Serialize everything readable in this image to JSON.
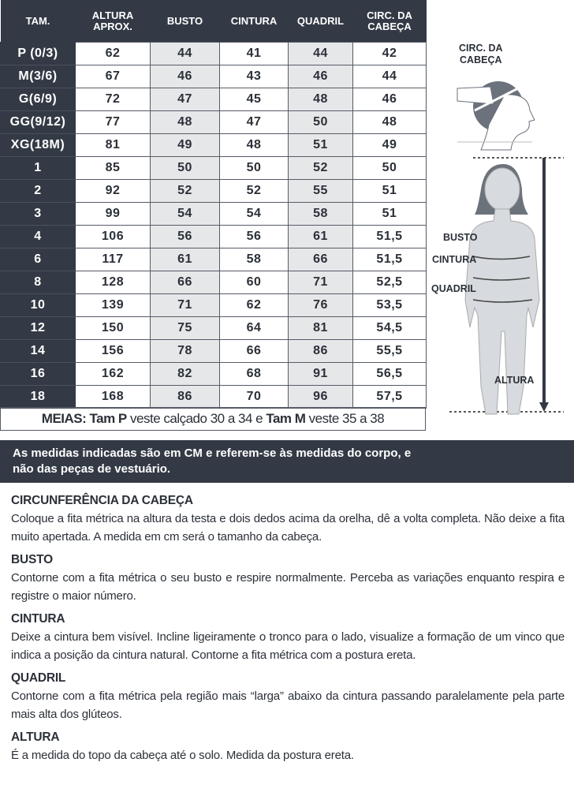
{
  "table": {
    "headers": [
      "TAM.",
      "ALTURA APROX.",
      "BUSTO",
      "CINTURA",
      "QUADRIL",
      "CIRC. DA CABEÇA"
    ],
    "rows": [
      [
        "P (0/3)",
        "62",
        "44",
        "41",
        "44",
        "42"
      ],
      [
        "M(3/6)",
        "67",
        "46",
        "43",
        "46",
        "44"
      ],
      [
        "G(6/9)",
        "72",
        "47",
        "45",
        "48",
        "46"
      ],
      [
        "GG(9/12)",
        "77",
        "48",
        "47",
        "50",
        "48"
      ],
      [
        "XG(18M)",
        "81",
        "49",
        "48",
        "51",
        "49"
      ],
      [
        "1",
        "85",
        "50",
        "50",
        "52",
        "50"
      ],
      [
        "2",
        "92",
        "52",
        "52",
        "55",
        "51"
      ],
      [
        "3",
        "99",
        "54",
        "54",
        "58",
        "51"
      ],
      [
        "4",
        "106",
        "56",
        "56",
        "61",
        "51,5"
      ],
      [
        "6",
        "117",
        "61",
        "58",
        "66",
        "51,5"
      ],
      [
        "8",
        "128",
        "66",
        "60",
        "71",
        "52,5"
      ],
      [
        "10",
        "139",
        "71",
        "62",
        "76",
        "53,5"
      ],
      [
        "12",
        "150",
        "75",
        "64",
        "81",
        "54,5"
      ],
      [
        "14",
        "156",
        "78",
        "66",
        "86",
        "55,5"
      ],
      [
        "16",
        "162",
        "82",
        "68",
        "91",
        "56,5"
      ],
      [
        "18",
        "168",
        "86",
        "70",
        "96",
        "57,5"
      ]
    ]
  },
  "meias": {
    "label": "MEIAS:",
    "p": "Tam P",
    "p_text": "veste calçado 30 a 34  e",
    "m": "Tam M",
    "m_text": "veste 35 a 38"
  },
  "figure": {
    "head_label_1": "CIRC. DA",
    "head_label_2": "CABEÇA",
    "busto": "BUSTO",
    "cintura": "CINTURA",
    "quadril": "QUADRIL",
    "altura": "ALTURA"
  },
  "band": {
    "line1": "As medidas indicadas são em CM e referem-se às medidas do corpo, e",
    "line2": "não das peças de vestuário."
  },
  "notes": [
    {
      "title": "CIRCUNFERÊNCIA DA CABEÇA",
      "text": "Coloque a fita métrica na altura da testa e dois dedos acima da orelha, dê a volta completa. Não deixe a fita muito apertada. A medida em cm será o tamanho da cabeça."
    },
    {
      "title": "BUSTO",
      "text": "Contorne com a fita métrica o seu busto e respire normalmente. Perceba as variações enquanto respira e registre o maior número."
    },
    {
      "title": "CINTURA",
      "text": "Deixe a cintura bem visível. Incline ligeiramente o tronco para o lado, visualize a formação de um vinco que indica a posição da cintura natural. Contorne a fita métrica com a postura ereta."
    },
    {
      "title": "QUADRIL",
      "text": "Contorne com a fita métrica pela região mais “larga” abaixo da cintura passando paralelamente pela parte mais alta dos glúteos."
    },
    {
      "title": "ALTURA",
      "text": "É a medida do topo da cabeça até o solo. Medida da postura ereta."
    }
  ],
  "colors": {
    "dark": "#333a45",
    "gray_column": "#e6e7e9",
    "figure": "#d7dade",
    "hair": "#6b727c"
  }
}
